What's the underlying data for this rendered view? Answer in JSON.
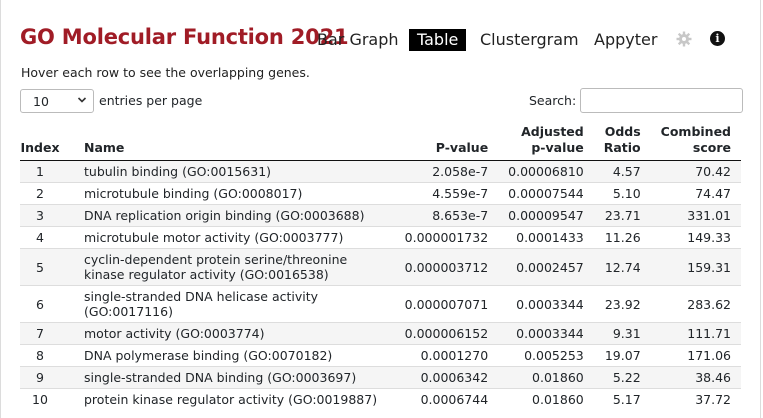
{
  "title": "GO Molecular Function 2021",
  "nav": {
    "bar_graph": "Bar Graph",
    "table": "Table",
    "clustergram": "Clustergram",
    "appyter": "Appyter",
    "info_glyph": "i"
  },
  "hint": "Hover each row to see the overlapping genes.",
  "length_menu": {
    "value": "10",
    "label": "entries per page"
  },
  "search": {
    "label": "Search:",
    "value": ""
  },
  "columns": {
    "index": "Index",
    "name": "Name",
    "pvalue": "P-value",
    "adj_line1": "Adjusted",
    "adj_line2": "p-value",
    "odds_line1": "Odds",
    "odds_line2": "Ratio",
    "comb_line1": "Combined",
    "comb_line2": "score"
  },
  "rows": [
    {
      "index": "1",
      "name": "tubulin binding (GO:0015631)",
      "pvalue": "2.058e-7",
      "adj": "0.00006810",
      "odds": "4.57",
      "combined": "70.42"
    },
    {
      "index": "2",
      "name": "microtubule binding (GO:0008017)",
      "pvalue": "4.559e-7",
      "adj": "0.00007544",
      "odds": "5.10",
      "combined": "74.47"
    },
    {
      "index": "3",
      "name": "DNA replication origin binding (GO:0003688)",
      "pvalue": "8.653e-7",
      "adj": "0.00009547",
      "odds": "23.71",
      "combined": "331.01"
    },
    {
      "index": "4",
      "name": "microtubule motor activity (GO:0003777)",
      "pvalue": "0.000001732",
      "adj": "0.0001433",
      "odds": "11.26",
      "combined": "149.33"
    },
    {
      "index": "5",
      "name": "cyclin-dependent protein serine/threonine kinase regulator activity (GO:0016538)",
      "pvalue": "0.000003712",
      "adj": "0.0002457",
      "odds": "12.74",
      "combined": "159.31"
    },
    {
      "index": "6",
      "name": "single-stranded DNA helicase activity (GO:0017116)",
      "pvalue": "0.000007071",
      "adj": "0.0003344",
      "odds": "23.92",
      "combined": "283.62"
    },
    {
      "index": "7",
      "name": "motor activity (GO:0003774)",
      "pvalue": "0.000006152",
      "adj": "0.0003344",
      "odds": "9.31",
      "combined": "111.71"
    },
    {
      "index": "8",
      "name": "DNA polymerase binding (GO:0070182)",
      "pvalue": "0.0001270",
      "adj": "0.005253",
      "odds": "19.07",
      "combined": "171.06"
    },
    {
      "index": "9",
      "name": "single-stranded DNA binding (GO:0003697)",
      "pvalue": "0.0006342",
      "adj": "0.01860",
      "odds": "5.22",
      "combined": "38.46"
    },
    {
      "index": "10",
      "name": "protein kinase regulator activity (GO:0019887)",
      "pvalue": "0.0006744",
      "adj": "0.01860",
      "odds": "5.17",
      "combined": "37.72"
    }
  ],
  "colors": {
    "title": "#a01c26",
    "active_tab_bg": "#000000",
    "stripe": "#f5f5f5"
  },
  "icons": {
    "settings": "gear-icon",
    "info": "info-icon",
    "select": "chevron-down-icon"
  }
}
